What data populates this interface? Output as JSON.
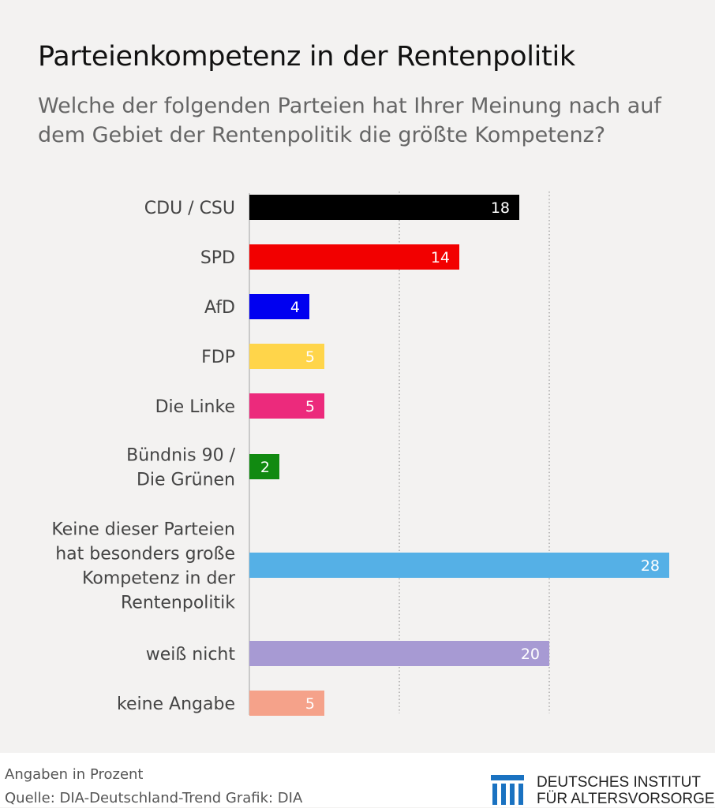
{
  "title": "Parteienkompetenz in der Rentenpolitik",
  "subtitle": "Welche der folgenden Parteien hat Ihrer Meinung nach auf dem Gebiet der Rentenpolitik die größte Kompetenz?",
  "chart_data": {
    "type": "bar",
    "orientation": "horizontal",
    "categories": [
      [
        "CDU / CSU"
      ],
      [
        "SPD"
      ],
      [
        "AfD"
      ],
      [
        "FDP"
      ],
      [
        "Die Linke"
      ],
      [
        "Bündnis 90 /",
        "Die Grünen"
      ],
      [
        "Keine dieser Parteien",
        "hat besonders große",
        "Kompetenz in der",
        "Rentenpolitik"
      ],
      [
        "weiß nicht"
      ],
      [
        "keine Angabe"
      ]
    ],
    "values": [
      18,
      14,
      4,
      5,
      5,
      2,
      28,
      20,
      5
    ],
    "colors": [
      "#000000",
      "#f20000",
      "#0000f0",
      "#ffd54a",
      "#ec2a7c",
      "#118a11",
      "#55b0e6",
      "#a79ad3",
      "#f5a28a"
    ],
    "data_labels": [
      "18",
      "14",
      "4",
      "5",
      "5",
      "2",
      "28",
      "20",
      "5"
    ],
    "xlim": [
      0,
      28
    ],
    "gridlines_at": [
      10,
      20
    ],
    "grid": "dotted vertical lines",
    "legend": "none",
    "axis_tick_labels": "none"
  },
  "footer": {
    "note": "Angaben in Prozent",
    "source": "Quelle: DIA-Deutschland-Trend  Grafik: DIA"
  },
  "logo": {
    "icon": "dia-columns-logo-icon",
    "color": "#1a72c1",
    "line1": "DEUTSCHES INSTITUT",
    "line2": "FÜR ALTERSVORSORGE"
  }
}
